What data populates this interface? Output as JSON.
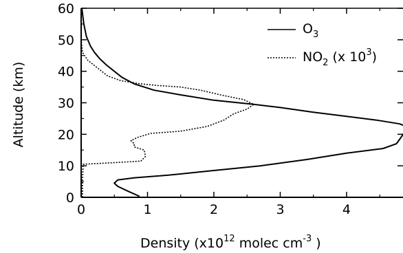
{
  "chart_data": {
    "type": "line",
    "xlabel": {
      "prefix": "Density (x10",
      "exp1": "12",
      "mid": "  molec cm",
      "exp2": "-3",
      "suffix": " )"
    },
    "ylabel": "Altitude (km)",
    "xlim": [
      0,
      4.85
    ],
    "ylim": [
      0,
      60
    ],
    "x_ticks": [
      0,
      1,
      2,
      3,
      4
    ],
    "y_ticks": [
      0,
      10,
      20,
      30,
      40,
      50,
      60
    ],
    "grid": false,
    "legend_position": "top-right",
    "series": [
      {
        "name": "O3",
        "legend": {
          "base": "O",
          "sub": "3"
        },
        "style": "solid",
        "points": [
          [
            0.88,
            0.3
          ],
          [
            0.7,
            2
          ],
          [
            0.55,
            3.5
          ],
          [
            0.5,
            4.5
          ],
          [
            0.55,
            5.5
          ],
          [
            0.8,
            6.2
          ],
          [
            1.3,
            7
          ],
          [
            2.0,
            8.5
          ],
          [
            2.7,
            10
          ],
          [
            3.4,
            12
          ],
          [
            4.0,
            14
          ],
          [
            4.55,
            15.5
          ],
          [
            4.75,
            17
          ],
          [
            4.82,
            19
          ],
          [
            4.88,
            21
          ],
          [
            4.9,
            22.5
          ],
          [
            4.8,
            23.3
          ],
          [
            4.45,
            24.5
          ],
          [
            4.0,
            25.7
          ],
          [
            3.5,
            27
          ],
          [
            3.0,
            28.5
          ],
          [
            2.6,
            29.5
          ],
          [
            2.0,
            30.8
          ],
          [
            1.5,
            32.5
          ],
          [
            1.1,
            34
          ],
          [
            0.8,
            36
          ],
          [
            0.62,
            38
          ],
          [
            0.5,
            40
          ],
          [
            0.38,
            42
          ],
          [
            0.28,
            44
          ],
          [
            0.2,
            46
          ],
          [
            0.14,
            48
          ],
          [
            0.08,
            51
          ],
          [
            0.04,
            55
          ],
          [
            0.01,
            60
          ]
        ]
      },
      {
        "name": "NO2 (x 10^3)",
        "legend": {
          "base": "NO",
          "sub": "2",
          "mid": " (x 10",
          "sup": "3",
          "end": ")"
        },
        "style": "dotted",
        "points": [
          [
            0.02,
            0
          ],
          [
            0.02,
            5
          ],
          [
            0.03,
            10.5
          ],
          [
            0.5,
            11
          ],
          [
            0.9,
            11.5
          ],
          [
            0.97,
            13
          ],
          [
            0.95,
            15
          ],
          [
            0.8,
            16
          ],
          [
            0.8,
            17
          ],
          [
            0.75,
            18
          ],
          [
            0.85,
            19
          ],
          [
            1.05,
            20.3
          ],
          [
            1.5,
            21
          ],
          [
            1.9,
            22.5
          ],
          [
            2.15,
            24.5
          ],
          [
            2.3,
            26.5
          ],
          [
            2.5,
            28
          ],
          [
            2.6,
            29.5
          ],
          [
            2.45,
            31
          ],
          [
            2.1,
            32.5
          ],
          [
            1.8,
            34
          ],
          [
            1.5,
            35
          ],
          [
            1.15,
            35.5
          ],
          [
            0.9,
            36
          ],
          [
            0.6,
            37
          ],
          [
            0.4,
            38.5
          ],
          [
            0.25,
            41
          ],
          [
            0.1,
            43.5
          ],
          [
            0.02,
            46
          ],
          [
            0.0,
            50
          ]
        ]
      }
    ]
  }
}
